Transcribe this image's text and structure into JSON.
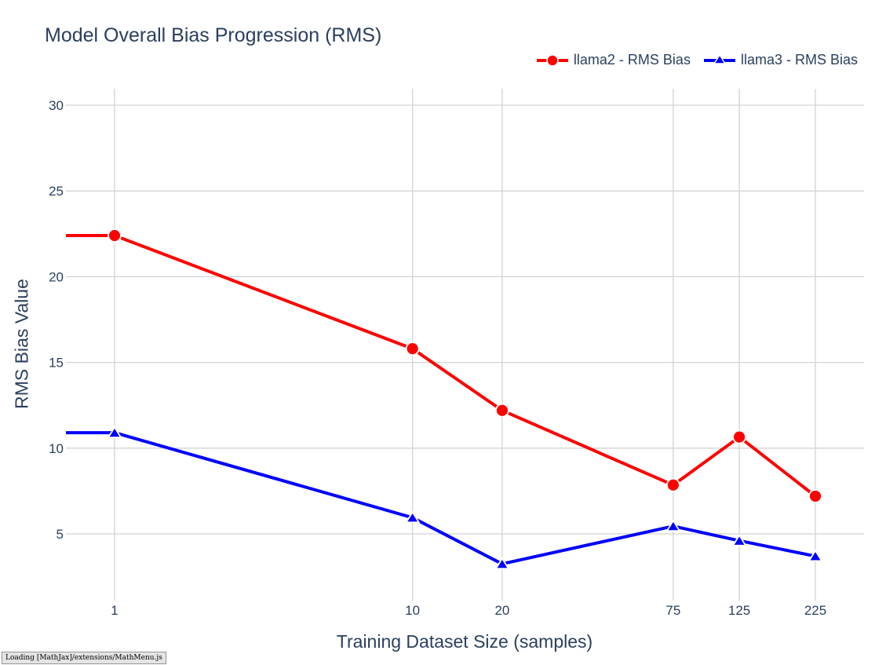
{
  "chart_data": {
    "type": "line",
    "title": "Model Overall Bias Progression (RMS)",
    "xlabel": "Training Dataset Size (samples)",
    "ylabel": "RMS Bias Value",
    "x_scale": "log",
    "x": [
      1,
      10,
      20,
      75,
      125,
      225
    ],
    "x_tick_labels": [
      "1",
      "10",
      "20",
      "75",
      "125",
      "225"
    ],
    "y_ticks": [
      5,
      10,
      15,
      20,
      25,
      30
    ],
    "ylim": [
      1,
      31
    ],
    "grid": true,
    "legend_position": "top-right",
    "series": [
      {
        "name": "llama2 - RMS Bias",
        "values": [
          22.4,
          15.8,
          12.2,
          7.85,
          10.65,
          7.2
        ],
        "color": "#ff0000",
        "marker": "circle"
      },
      {
        "name": "llama3 - RMS Bias",
        "values": [
          10.9,
          5.95,
          3.25,
          5.45,
          4.6,
          3.7
        ],
        "color": "#0000ff",
        "marker": "triangle-up"
      }
    ]
  },
  "status_bar": {
    "text": "Loading [MathJax]/extensions/MathMenu.js"
  }
}
